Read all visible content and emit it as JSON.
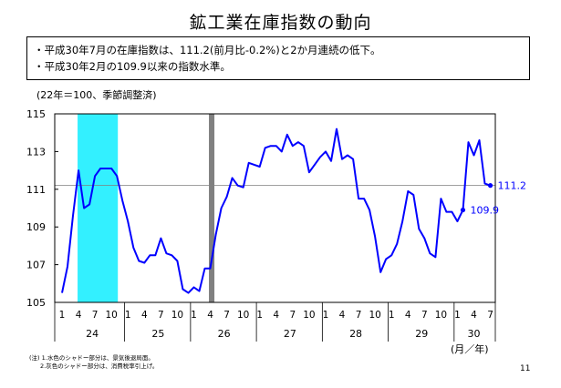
{
  "page": {
    "title": "鉱工業在庫指数の動向",
    "notes": [
      "・平成30年7月の在庫指数は、111.2(前月比-0.2%)と2か月連続の低下。",
      "・平成30年2月の109.9以来の指数水準。"
    ],
    "unit_label": "(22年＝100、季節調整済)",
    "axis_unit": "(月／年)",
    "footnotes": [
      "(注) 1.水色のシャドー部分は、景気後退局面。",
      "2.灰色のシャドー部分は、消費税率引上げ。"
    ],
    "page_number": "11"
  },
  "chart_data": {
    "type": "line",
    "title": "",
    "xlabel": "(月／年)",
    "ylabel": "",
    "ylim": [
      105,
      115
    ],
    "yticks": [
      105,
      107,
      109,
      111,
      113,
      115
    ],
    "month_ticks": [
      "1",
      "4",
      "7",
      "10",
      "1",
      "4",
      "7",
      "10",
      "1",
      "4",
      "7",
      "10",
      "1",
      "4",
      "7",
      "10",
      "1",
      "4",
      "7",
      "10",
      "1",
      "4",
      "7",
      "10",
      "1",
      "4",
      "7"
    ],
    "years": [
      "24",
      "25",
      "26",
      "27",
      "28",
      "29",
      "30"
    ],
    "recession_shading": {
      "from": "24/4",
      "to": "24/11",
      "color": "#33f0ff"
    },
    "tax_hike_shading": {
      "at": "26/4",
      "color": "#808080"
    },
    "reference_line": 111.2,
    "series": [
      {
        "color": "#0000ff",
        "x": [
          "24/1",
          "24/2",
          "24/3",
          "24/4",
          "24/5",
          "24/6",
          "24/7",
          "24/8",
          "24/9",
          "24/10",
          "24/11",
          "24/12",
          "25/1",
          "25/2",
          "25/3",
          "25/4",
          "25/5",
          "25/6",
          "25/7",
          "25/8",
          "25/9",
          "25/10",
          "25/11",
          "25/12",
          "26/1",
          "26/2",
          "26/3",
          "26/4",
          "26/5",
          "26/6",
          "26/7",
          "26/8",
          "26/9",
          "26/10",
          "26/11",
          "26/12",
          "27/1",
          "27/2",
          "27/3",
          "27/4",
          "27/5",
          "27/6",
          "27/7",
          "27/8",
          "27/9",
          "27/10",
          "27/11",
          "27/12",
          "28/1",
          "28/2",
          "28/3",
          "28/4",
          "28/5",
          "28/6",
          "28/7",
          "28/8",
          "28/9",
          "28/10",
          "28/11",
          "28/12",
          "29/1",
          "29/2",
          "29/3",
          "29/4",
          "29/5",
          "29/6",
          "29/7",
          "29/8",
          "29/9",
          "29/10",
          "29/11",
          "29/12",
          "30/1",
          "30/2",
          "30/3",
          "30/4",
          "30/5",
          "30/6",
          "30/7"
        ],
        "values": [
          105.5,
          106.9,
          109.6,
          112.0,
          110.0,
          110.2,
          111.7,
          112.1,
          112.1,
          112.1,
          111.7,
          110.4,
          109.3,
          107.9,
          107.2,
          107.1,
          107.5,
          107.5,
          108.4,
          107.6,
          107.5,
          107.2,
          105.7,
          105.5,
          105.8,
          105.6,
          106.8,
          106.8,
          108.6,
          110.0,
          110.6,
          111.6,
          111.2,
          111.1,
          112.4,
          112.3,
          112.2,
          113.2,
          113.3,
          113.3,
          113.0,
          113.9,
          113.3,
          113.5,
          113.3,
          111.9,
          112.3,
          112.7,
          113.0,
          112.5,
          114.2,
          112.6,
          112.8,
          112.6,
          110.5,
          110.5,
          109.9,
          108.5,
          106.6,
          107.3,
          107.5,
          108.1,
          109.3,
          110.9,
          110.7,
          108.9,
          108.4,
          107.6,
          107.4,
          110.5,
          109.8,
          109.8,
          109.3,
          109.9,
          113.5,
          112.8,
          113.6,
          111.3,
          111.2
        ],
        "data_labels": [
          {
            "x": "30/2",
            "value": 109.9,
            "text": "109.9"
          },
          {
            "x": "30/7",
            "value": 111.2,
            "text": "111.2"
          }
        ]
      }
    ]
  }
}
